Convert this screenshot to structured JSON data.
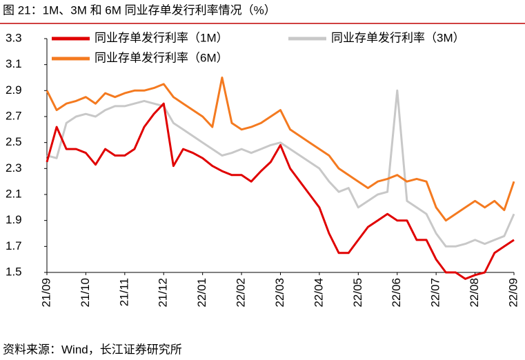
{
  "chart_data": {
    "type": "line",
    "title": "图 21：1M、3M 和 6M 同业存单发行利率情况（%）",
    "source": "资料来源：Wind，长江证券研究所",
    "categories": [
      "21/09",
      null,
      null,
      null,
      "21/10",
      null,
      null,
      null,
      "21/11",
      null,
      null,
      null,
      "21/12",
      null,
      null,
      null,
      "22/01",
      null,
      null,
      null,
      "22/02",
      null,
      null,
      null,
      "22/03",
      null,
      null,
      null,
      "22/04",
      null,
      null,
      null,
      "22/05",
      null,
      null,
      null,
      "22/06",
      null,
      null,
      null,
      "22/07",
      null,
      null,
      null,
      "22/08",
      null,
      null,
      null,
      "22/09"
    ],
    "series": [
      {
        "name": "同业存单发行利率（1M）",
        "color": "#e00000",
        "values": [
          2.35,
          2.62,
          2.45,
          2.45,
          2.42,
          2.33,
          2.45,
          2.4,
          2.4,
          2.45,
          2.62,
          2.72,
          2.8,
          2.32,
          2.45,
          2.42,
          2.38,
          2.32,
          2.28,
          2.25,
          2.25,
          2.2,
          2.28,
          2.35,
          2.48,
          2.3,
          2.2,
          2.1,
          2.0,
          1.8,
          1.65,
          1.65,
          1.75,
          1.85,
          1.9,
          1.95,
          1.9,
          1.9,
          1.75,
          1.75,
          1.6,
          1.5,
          1.5,
          1.45,
          1.48,
          1.5,
          1.65,
          1.7,
          1.75
        ]
      },
      {
        "name": "同业存单发行利率（3M）",
        "color": "#c8c8c8",
        "values": [
          2.4,
          2.38,
          2.65,
          2.7,
          2.72,
          2.7,
          2.75,
          2.78,
          2.78,
          2.8,
          2.82,
          2.8,
          2.78,
          2.65,
          2.6,
          2.55,
          2.5,
          2.45,
          2.4,
          2.42,
          2.45,
          2.42,
          2.45,
          2.48,
          2.5,
          2.45,
          2.4,
          2.35,
          2.3,
          2.2,
          2.12,
          2.15,
          2.0,
          2.05,
          2.1,
          2.12,
          2.9,
          2.05,
          2.0,
          1.95,
          1.8,
          1.7,
          1.7,
          1.72,
          1.75,
          1.72,
          1.75,
          1.78,
          1.95
        ]
      },
      {
        "name": "同业存单发行利率（6M）",
        "color": "#f47a20",
        "values": [
          2.9,
          2.75,
          2.8,
          2.82,
          2.85,
          2.8,
          2.88,
          2.85,
          2.88,
          2.9,
          2.9,
          2.92,
          2.95,
          2.85,
          2.8,
          2.75,
          2.7,
          2.62,
          3.0,
          2.65,
          2.6,
          2.62,
          2.65,
          2.7,
          2.75,
          2.6,
          2.55,
          2.5,
          2.45,
          2.4,
          2.3,
          2.25,
          2.2,
          2.15,
          2.2,
          2.22,
          2.25,
          2.2,
          2.22,
          2.2,
          2.0,
          1.9,
          1.95,
          2.0,
          2.05,
          2.0,
          2.05,
          1.98,
          2.2
        ]
      }
    ],
    "ylim": [
      1.5,
      3.3
    ],
    "yticks": [
      1.5,
      1.7,
      1.9,
      2.1,
      2.3,
      2.5,
      2.7,
      2.9,
      3.1,
      3.3
    ],
    "grid": false,
    "legend": "top"
  }
}
